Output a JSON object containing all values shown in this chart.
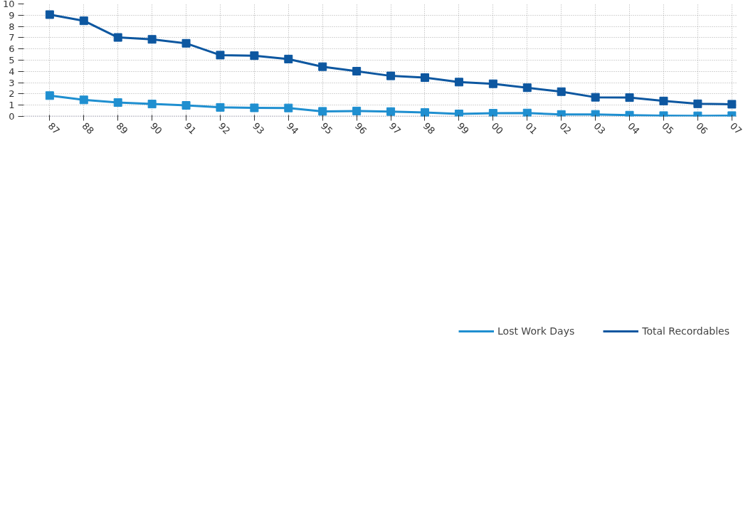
{
  "chart_data": {
    "type": "line",
    "categories": [
      "87",
      "88",
      "89",
      "90",
      "91",
      "92",
      "93",
      "94",
      "95",
      "96",
      "97",
      "98",
      "99",
      "00",
      "01",
      "02",
      "03",
      "04",
      "05",
      "06",
      "07"
    ],
    "series": [
      {
        "name": "Lost Work Days",
        "color": "#1f8fd0",
        "values": [
          1.85,
          1.47,
          1.23,
          1.1,
          0.98,
          0.8,
          0.76,
          0.75,
          0.45,
          0.48,
          0.43,
          0.35,
          0.22,
          0.28,
          0.3,
          0.17,
          0.18,
          0.11,
          0.07,
          0.05,
          0.07
        ]
      },
      {
        "name": "Total Recordables",
        "color": "#0d57a0",
        "values": [
          9.05,
          8.5,
          7.02,
          6.85,
          6.5,
          5.45,
          5.4,
          5.1,
          4.42,
          4.02,
          3.6,
          3.45,
          3.05,
          2.9,
          2.55,
          2.2,
          1.7,
          1.67,
          1.37,
          1.12,
          1.08
        ]
      }
    ],
    "ylim": [
      0,
      10
    ],
    "yticks": [
      0,
      1,
      2,
      3,
      4,
      5,
      6,
      7,
      8,
      9,
      10
    ],
    "grid": true,
    "legend": "bottom",
    "marker": "square",
    "line_style": "solid"
  }
}
